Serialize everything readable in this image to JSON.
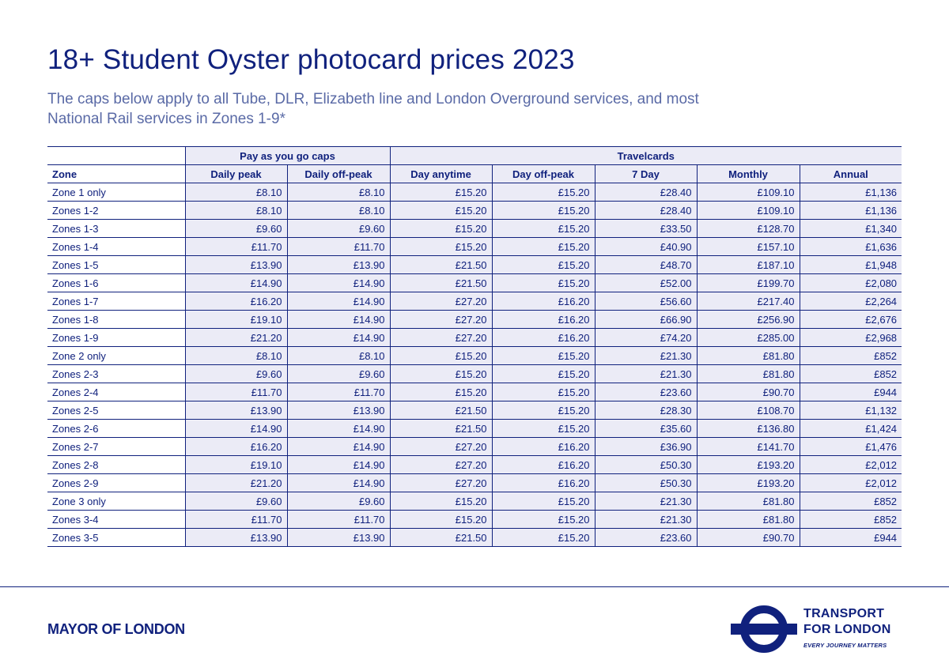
{
  "title": "18+ Student Oyster photocard prices 2023",
  "subtitle": "The caps below apply to all Tube, DLR, Elizabeth line and London Overground services, and most National Rail services in Zones 1-9*",
  "table": {
    "group_headers": {
      "payg": "Pay as you go caps",
      "travelcards": "Travelcards"
    },
    "columns": [
      "Zone",
      "Daily peak",
      "Daily off-peak",
      "Day anytime",
      "Day off-peak",
      "7 Day",
      "Monthly",
      "Annual"
    ],
    "rows": [
      [
        "Zone 1 only",
        "£8.10",
        "£8.10",
        "£15.20",
        "£15.20",
        "£28.40",
        "£109.10",
        "£1,136"
      ],
      [
        "Zones 1-2",
        "£8.10",
        "£8.10",
        "£15.20",
        "£15.20",
        "£28.40",
        "£109.10",
        "£1,136"
      ],
      [
        "Zones 1-3",
        "£9.60",
        "£9.60",
        "£15.20",
        "£15.20",
        "£33.50",
        "£128.70",
        "£1,340"
      ],
      [
        "Zones 1-4",
        "£11.70",
        "£11.70",
        "£15.20",
        "£15.20",
        "£40.90",
        "£157.10",
        "£1,636"
      ],
      [
        "Zones 1-5",
        "£13.90",
        "£13.90",
        "£21.50",
        "£15.20",
        "£48.70",
        "£187.10",
        "£1,948"
      ],
      [
        "Zones 1-6",
        "£14.90",
        "£14.90",
        "£21.50",
        "£15.20",
        "£52.00",
        "£199.70",
        "£2,080"
      ],
      [
        "Zones 1-7",
        "£16.20",
        "£14.90",
        "£27.20",
        "£16.20",
        "£56.60",
        "£217.40",
        "£2,264"
      ],
      [
        "Zones 1-8",
        "£19.10",
        "£14.90",
        "£27.20",
        "£16.20",
        "£66.90",
        "£256.90",
        "£2,676"
      ],
      [
        "Zones 1-9",
        "£21.20",
        "£14.90",
        "£27.20",
        "£16.20",
        "£74.20",
        "£285.00",
        "£2,968"
      ],
      [
        "Zone 2 only",
        "£8.10",
        "£8.10",
        "£15.20",
        "£15.20",
        "£21.30",
        "£81.80",
        "£852"
      ],
      [
        "Zones 2-3",
        "£9.60",
        "£9.60",
        "£15.20",
        "£15.20",
        "£21.30",
        "£81.80",
        "£852"
      ],
      [
        "Zones 2-4",
        "£11.70",
        "£11.70",
        "£15.20",
        "£15.20",
        "£23.60",
        "£90.70",
        "£944"
      ],
      [
        "Zones 2-5",
        "£13.90",
        "£13.90",
        "£21.50",
        "£15.20",
        "£28.30",
        "£108.70",
        "£1,132"
      ],
      [
        "Zones 2-6",
        "£14.90",
        "£14.90",
        "£21.50",
        "£15.20",
        "£35.60",
        "£136.80",
        "£1,424"
      ],
      [
        "Zones 2-7",
        "£16.20",
        "£14.90",
        "£27.20",
        "£16.20",
        "£36.90",
        "£141.70",
        "£1,476"
      ],
      [
        "Zones 2-8",
        "£19.10",
        "£14.90",
        "£27.20",
        "£16.20",
        "£50.30",
        "£193.20",
        "£2,012"
      ],
      [
        "Zones 2-9",
        "£21.20",
        "£14.90",
        "£27.20",
        "£16.20",
        "£50.30",
        "£193.20",
        "£2,012"
      ],
      [
        "Zone 3 only",
        "£9.60",
        "£9.60",
        "£15.20",
        "£15.20",
        "£21.30",
        "£81.80",
        "£852"
      ],
      [
        "Zones 3-4",
        "£11.70",
        "£11.70",
        "£15.20",
        "£15.20",
        "£21.30",
        "£81.80",
        "£852"
      ],
      [
        "Zones 3-5",
        "£13.90",
        "£13.90",
        "£21.50",
        "£15.20",
        "£23.60",
        "£90.70",
        "£944"
      ]
    ]
  },
  "footer": {
    "mayor": "MAYOR OF LONDON",
    "tfl_line1": "TRANSPORT",
    "tfl_line2": "FOR LONDON",
    "tfl_tagline": "EVERY JOURNEY MATTERS"
  },
  "colors": {
    "brand": "#10217d",
    "tint": "#ebebf6",
    "subtitle": "#5a6aa6"
  },
  "icons": {
    "logo": "tfl-roundel-icon"
  }
}
